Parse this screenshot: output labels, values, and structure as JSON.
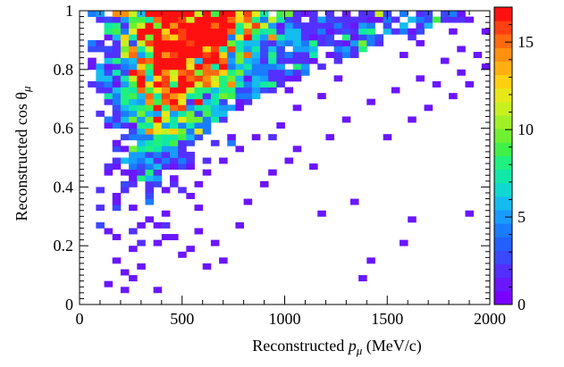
{
  "chart_data": {
    "type": "heatmap",
    "title": "",
    "xlabel": "Reconstructed p_μ (MeV/c)",
    "xlabel_parts": {
      "prefix": "Reconstructed ",
      "var": "p",
      "sub": "μ",
      "suffix": " (MeV/c)"
    },
    "ylabel": "Reconstructed cos θ_μ",
    "ylabel_parts": {
      "prefix": "Reconstructed cos ",
      "var": "θ",
      "sub": "μ"
    },
    "xlim": [
      0,
      2000
    ],
    "ylim": [
      0,
      1
    ],
    "x_ticks": [
      "0",
      "500",
      "1000",
      "1500",
      "2000"
    ],
    "y_ticks": [
      "0",
      "0.2",
      "0.4",
      "0.6",
      "0.8",
      "1"
    ],
    "color_scale": {
      "min": 0,
      "max": 17,
      "ticks": [
        "0",
        "5",
        "10",
        "15"
      ]
    },
    "binning": {
      "x_bin_width": 40,
      "y_bin_width": 0.02
    },
    "grid": false,
    "scatter_points": [
      [
        100,
        0.98
      ],
      [
        140,
        0.96
      ],
      [
        180,
        0.94
      ],
      [
        120,
        0.9
      ],
      [
        160,
        0.86
      ],
      [
        200,
        0.8
      ],
      [
        140,
        0.78
      ],
      [
        220,
        0.72
      ],
      [
        180,
        0.66
      ],
      [
        120,
        0.6
      ],
      [
        260,
        0.62
      ],
      [
        200,
        0.56
      ],
      [
        160,
        0.52
      ],
      [
        240,
        0.48
      ],
      [
        120,
        0.44
      ],
      [
        200,
        0.4
      ],
      [
        280,
        0.42
      ],
      [
        160,
        0.36
      ],
      [
        240,
        0.32
      ],
      [
        100,
        0.26
      ],
      [
        320,
        0.28
      ],
      [
        180,
        0.22
      ],
      [
        260,
        0.18
      ],
      [
        360,
        0.2
      ],
      [
        160,
        0.14
      ],
      [
        220,
        0.1
      ],
      [
        300,
        0.12
      ],
      [
        140,
        0.06
      ],
      [
        200,
        0.04
      ],
      [
        260,
        0.08
      ],
      [
        380,
        0.04
      ],
      [
        300,
        0.26
      ],
      [
        340,
        0.34
      ],
      [
        420,
        0.3
      ],
      [
        460,
        0.22
      ],
      [
        520,
        0.18
      ],
      [
        560,
        0.24
      ],
      [
        640,
        0.2
      ],
      [
        620,
        0.12
      ],
      [
        680,
        0.14
      ],
      [
        560,
        0.32
      ],
      [
        760,
        0.26
      ],
      [
        820,
        0.34
      ],
      [
        880,
        0.4
      ],
      [
        940,
        0.44
      ],
      [
        1000,
        0.48
      ],
      [
        1060,
        0.52
      ],
      [
        1120,
        0.46
      ],
      [
        1180,
        0.3
      ],
      [
        1340,
        0.34
      ],
      [
        1400,
        0.14
      ],
      [
        1380,
        0.08
      ],
      [
        1580,
        0.2
      ],
      [
        1600,
        0.28
      ],
      [
        1880,
        0.3
      ],
      [
        1500,
        0.58
      ],
      [
        1600,
        0.62
      ],
      [
        1700,
        0.66
      ],
      [
        1800,
        0.7
      ],
      [
        1900,
        0.74
      ],
      [
        1960,
        0.8
      ],
      [
        1860,
        0.86
      ],
      [
        1760,
        0.82
      ],
      [
        1660,
        0.88
      ],
      [
        1560,
        0.84
      ],
      [
        1460,
        0.9
      ],
      [
        1360,
        0.86
      ],
      [
        1260,
        0.76
      ],
      [
        1160,
        0.7
      ],
      [
        1060,
        0.66
      ],
      [
        960,
        0.6
      ],
      [
        860,
        0.58
      ],
      [
        780,
        0.52
      ],
      [
        720,
        0.56
      ],
      [
        680,
        0.48
      ],
      [
        620,
        0.44
      ],
      [
        580,
        0.4
      ],
      [
        520,
        0.36
      ],
      [
        480,
        0.46
      ],
      [
        440,
        0.5
      ],
      [
        400,
        0.38
      ],
      [
        360,
        0.46
      ],
      [
        320,
        0.5
      ],
      [
        440,
        0.56
      ],
      [
        500,
        0.62
      ],
      [
        1220,
        0.56
      ],
      [
        1300,
        0.62
      ],
      [
        1420,
        0.68
      ],
      [
        1540,
        0.72
      ],
      [
        1640,
        0.76
      ],
      [
        1740,
        0.74
      ],
      [
        1840,
        0.78
      ],
      [
        1940,
        0.84
      ],
      [
        1980,
        0.92
      ],
      [
        1900,
        0.96
      ],
      [
        1800,
        0.94
      ],
      [
        1700,
        0.98
      ],
      [
        1600,
        0.96
      ],
      [
        1500,
        0.98
      ],
      [
        1400,
        0.96
      ],
      [
        1300,
        0.98
      ],
      [
        1200,
        0.94
      ],
      [
        1100,
        0.98
      ],
      [
        1000,
        0.96
      ],
      [
        900,
        0.98
      ],
      [
        800,
        0.94
      ]
    ]
  }
}
